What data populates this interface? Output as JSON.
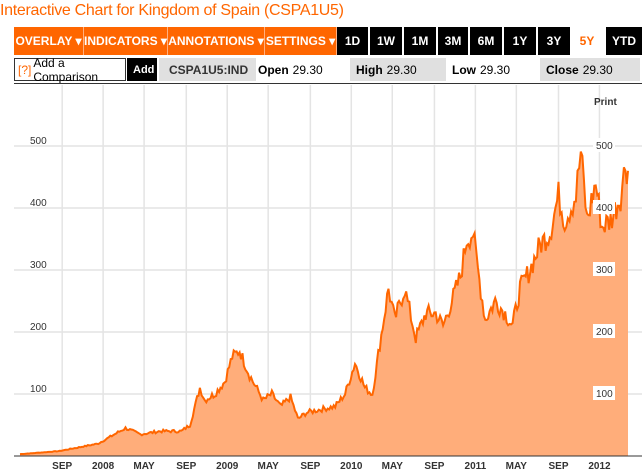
{
  "title": "Interactive Chart for Kingdom of Spain (CSPA1U5)",
  "menus": [
    "OVERLAY ▾",
    "INDICATORS ▾",
    "ANNOTATIONS ▾",
    "SETTINGS ▾"
  ],
  "ranges": [
    "1D",
    "1W",
    "1M",
    "3M",
    "6M",
    "1Y",
    "3Y",
    "5Y",
    "YTD"
  ],
  "selected_range": "5Y",
  "comparison": {
    "help": "[?]",
    "placeholder": "Add a Comparison",
    "add": "Add"
  },
  "ticker": "CSPA1U5:IND",
  "quote": {
    "open_label": "Open",
    "open": "29.30",
    "high_label": "High",
    "high": "29.30",
    "low_label": "Low",
    "low": "29.30",
    "close_label": "Close",
    "close": "29.30"
  },
  "print": "Print",
  "colors": {
    "accent": "#ff6600",
    "fill": "#ffad7a"
  },
  "chart_data": {
    "type": "area",
    "ylim": [
      0,
      500
    ],
    "yticks": [
      100,
      200,
      300,
      400,
      500
    ],
    "xlim": [
      2007.33,
      2012.23
    ],
    "xticks": [
      {
        "t": 2007.67,
        "label": "SEP"
      },
      {
        "t": 2008.0,
        "label": "2008"
      },
      {
        "t": 2008.33,
        "label": "MAY"
      },
      {
        "t": 2008.67,
        "label": "SEP"
      },
      {
        "t": 2009.0,
        "label": "2009"
      },
      {
        "t": 2009.33,
        "label": "MAY"
      },
      {
        "t": 2009.67,
        "label": "SEP"
      },
      {
        "t": 2010.0,
        "label": "2010"
      },
      {
        "t": 2010.33,
        "label": "MAY"
      },
      {
        "t": 2010.67,
        "label": "SEP"
      },
      {
        "t": 2011.0,
        "label": "2011"
      },
      {
        "t": 2011.33,
        "label": "MAY"
      },
      {
        "t": 2011.67,
        "label": "SEP"
      },
      {
        "t": 2012.0,
        "label": "2012"
      }
    ],
    "points": [
      [
        2007.33,
        3
      ],
      [
        2007.65,
        8
      ],
      [
        2007.96,
        20
      ],
      [
        2008.18,
        45
      ],
      [
        2008.3,
        35
      ],
      [
        2008.46,
        40
      ],
      [
        2008.63,
        40
      ],
      [
        2008.7,
        50
      ],
      [
        2008.78,
        110
      ],
      [
        2008.82,
        90
      ],
      [
        2008.9,
        100
      ],
      [
        2008.98,
        120
      ],
      [
        2009.04,
        160
      ],
      [
        2009.1,
        170
      ],
      [
        2009.18,
        130
      ],
      [
        2009.29,
        90
      ],
      [
        2009.36,
        100
      ],
      [
        2009.43,
        80
      ],
      [
        2009.51,
        95
      ],
      [
        2009.57,
        60
      ],
      [
        2009.64,
        70
      ],
      [
        2009.75,
        75
      ],
      [
        2009.87,
        80
      ],
      [
        2009.95,
        100
      ],
      [
        2010.03,
        150
      ],
      [
        2010.11,
        110
      ],
      [
        2010.17,
        100
      ],
      [
        2010.23,
        180
      ],
      [
        2010.3,
        270
      ],
      [
        2010.35,
        220
      ],
      [
        2010.43,
        270
      ],
      [
        2010.52,
        190
      ],
      [
        2010.6,
        230
      ],
      [
        2010.68,
        230
      ],
      [
        2010.74,
        210
      ],
      [
        2010.81,
        250
      ],
      [
        2010.88,
        290
      ],
      [
        2010.93,
        350
      ],
      [
        2010.98,
        360
      ],
      [
        2011.02,
        300
      ],
      [
        2011.08,
        220
      ],
      [
        2011.16,
        250
      ],
      [
        2011.24,
        230
      ],
      [
        2011.3,
        210
      ],
      [
        2011.36,
        270
      ],
      [
        2011.44,
        300
      ],
      [
        2011.52,
        340
      ],
      [
        2011.6,
        360
      ],
      [
        2011.67,
        420
      ],
      [
        2011.72,
        380
      ],
      [
        2011.81,
        420
      ],
      [
        2011.85,
        490
      ],
      [
        2011.9,
        380
      ],
      [
        2011.97,
        440
      ],
      [
        2012.02,
        370
      ],
      [
        2012.09,
        380
      ],
      [
        2012.17,
        420
      ],
      [
        2012.21,
        470
      ],
      [
        2012.23,
        460
      ]
    ]
  }
}
